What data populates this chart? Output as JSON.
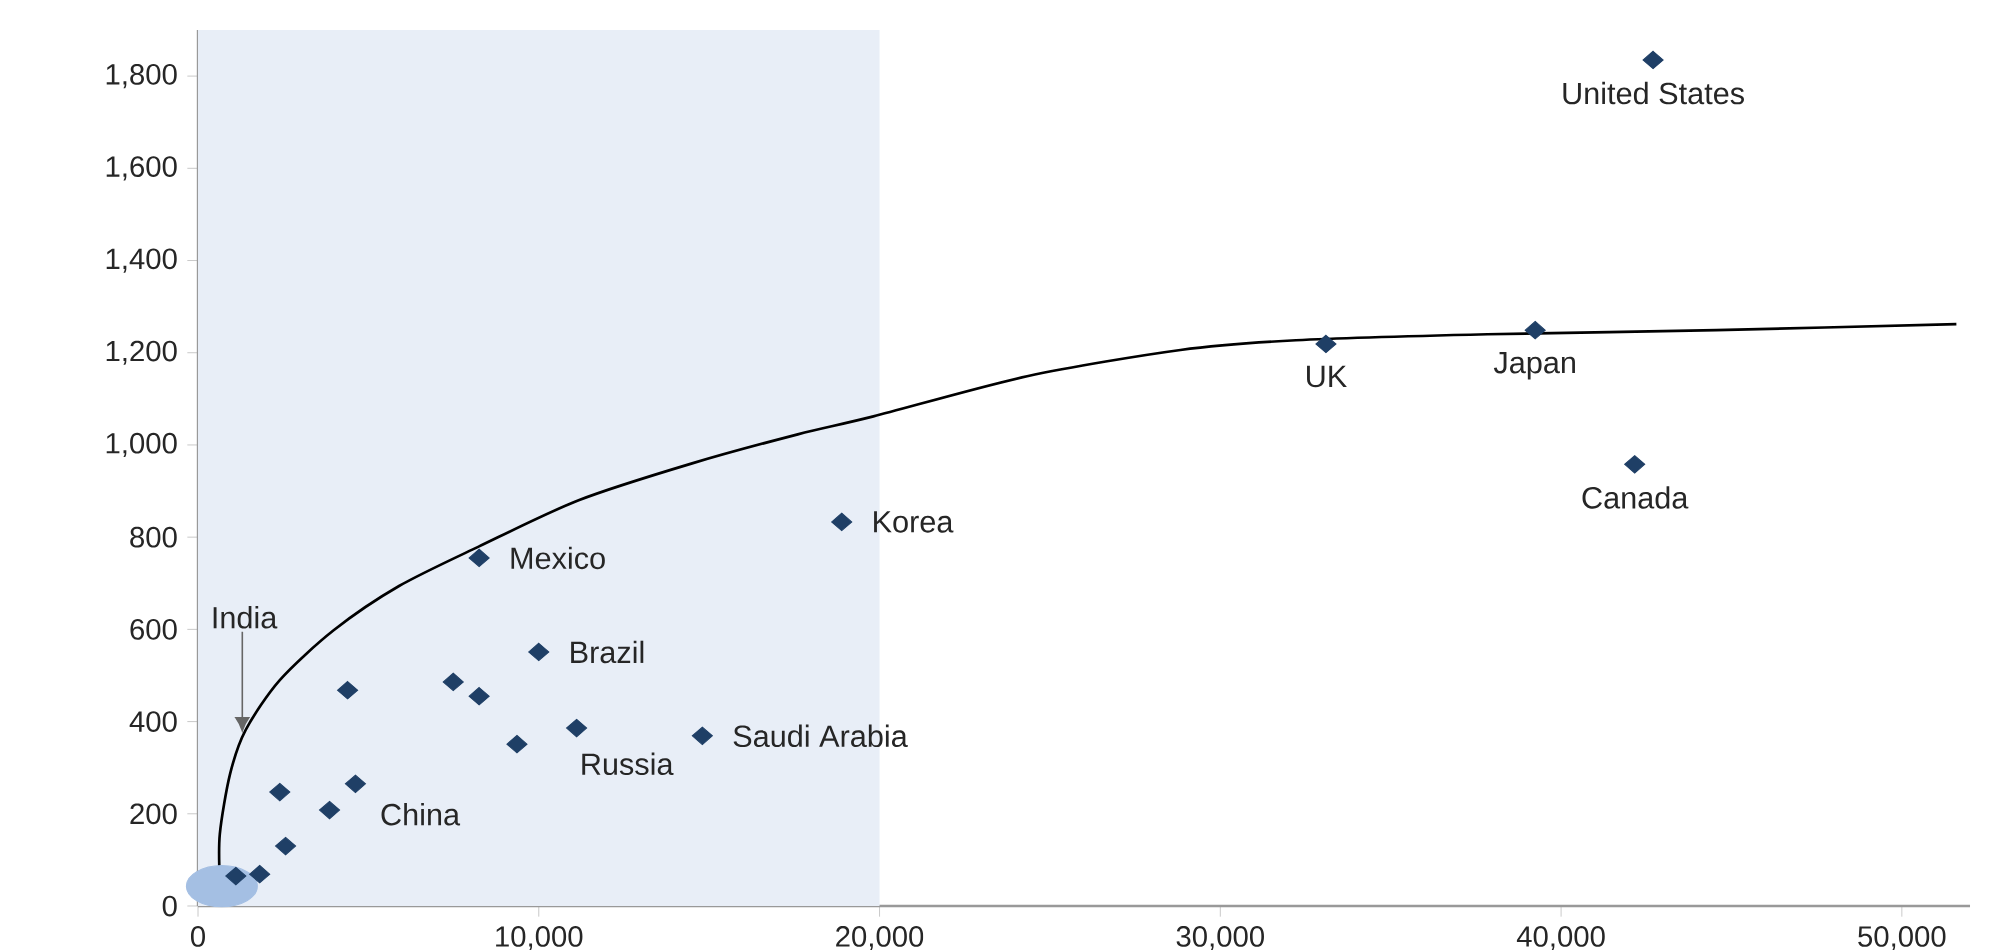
{
  "chart_data": {
    "type": "scatter",
    "xlim": [
      0,
      52000
    ],
    "ylim": [
      0,
      1900
    ],
    "xticks": [
      0,
      {
        "value": 10000,
        "label": "10,000"
      },
      {
        "value": 20000,
        "label": "20,000"
      },
      {
        "value": 30000,
        "label": "30,000"
      },
      {
        "value": 40000,
        "label": "40,000"
      },
      {
        "value": 50000,
        "label": "50,000"
      }
    ],
    "yticks": [
      0,
      200,
      400,
      600,
      800,
      {
        "value": 1000,
        "label": "1,000"
      },
      {
        "value": 1200,
        "label": "1,200"
      },
      {
        "value": 1400,
        "label": "1,400"
      },
      {
        "value": 1600,
        "label": "1,600"
      },
      {
        "value": 1800,
        "label": "1,800"
      }
    ],
    "grid": false,
    "bands": [
      {
        "axis": "x",
        "from": 0,
        "to": 20000,
        "color": "#e8eef7"
      }
    ],
    "series": [
      {
        "type": "line",
        "color": "#000000",
        "marker": "none",
        "x": [
          640,
          640,
          940,
          1400,
          2400,
          3980,
          5900,
          8250,
          11170,
          14500,
          17600,
          19820,
          24330,
          28830,
          32220,
          37840,
          44560,
          51600
        ],
        "values": [
          56,
          156,
          286,
          382,
          490,
          598,
          694,
          780,
          880,
          960,
          1023,
          1062,
          1149,
          1206,
          1227,
          1240,
          1249,
          1262
        ]
      },
      {
        "color": "#a4bfe3",
        "marker": "circle",
        "x": [
          700
        ],
        "values": [
          43
        ]
      },
      {
        "color": "#1f3f66",
        "marker": "diamond",
        "x": [
          1110,
          1810,
          2400,
          2570,
          3860,
          4390,
          4620,
          7490,
          8250,
          8250,
          9360,
          10000,
          11110,
          14800,
          18890,
          33100,
          39240,
          42160,
          42700
        ],
        "values": [
          65,
          69,
          247,
          130,
          208,
          468,
          265,
          486,
          455,
          755,
          351,
          551,
          386,
          369,
          833,
          1219,
          1249,
          958,
          1835
        ]
      }
    ],
    "annotations": [
      {
        "text": "United States",
        "x": 42700,
        "y": 1835
      },
      {
        "text": "UK",
        "x": 33100,
        "y": 1219
      },
      {
        "text": "Japan",
        "x": 39240,
        "y": 1249
      },
      {
        "text": "Canada",
        "x": 42160,
        "y": 958
      },
      {
        "text": "Korea",
        "x": 18890,
        "y": 833
      },
      {
        "text": "Mexico",
        "x": 8250,
        "y": 755
      },
      {
        "text": "Brazil",
        "x": 10000,
        "y": 551
      },
      {
        "text": "Saudi Arabia",
        "x": 14800,
        "y": 369
      },
      {
        "text": "Russia",
        "x": 11110,
        "y": 386
      },
      {
        "text": "China",
        "x": 4620,
        "y": 265
      },
      {
        "text": "India",
        "x": 1300,
        "y": 375
      }
    ]
  }
}
